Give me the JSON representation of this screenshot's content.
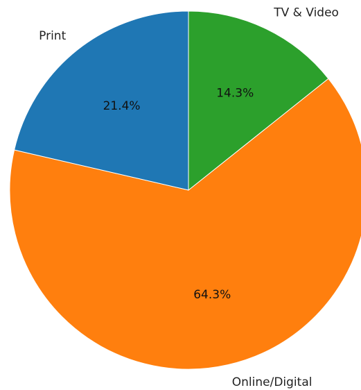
{
  "chart_data": {
    "type": "pie",
    "title": "",
    "start_angle_deg": 90,
    "direction": "counterclockwise",
    "slices": [
      {
        "label": "Print",
        "value": 21.4,
        "pct_label": "21.4%",
        "color": "#1f77b4"
      },
      {
        "label": "Online/Digital",
        "value": 64.3,
        "pct_label": "64.3%",
        "color": "#ff7f0e"
      },
      {
        "label": "TV & Video",
        "value": 14.3,
        "pct_label": "14.3%",
        "color": "#2ca02c"
      }
    ]
  }
}
